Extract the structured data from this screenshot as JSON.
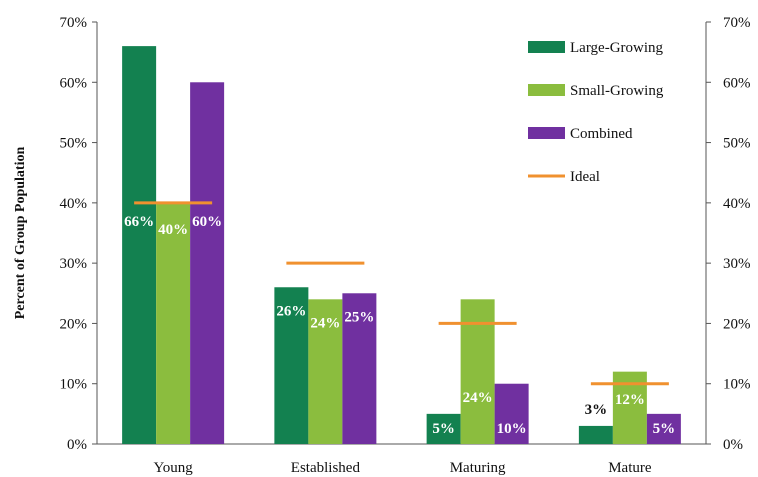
{
  "chart_data": {
    "type": "bar",
    "categories": [
      "Young",
      "Established",
      "Maturing",
      "Mature"
    ],
    "series": [
      {
        "name": "Large-Growing",
        "values": [
          66,
          26,
          5,
          3
        ],
        "labels": [
          "66%",
          "26%",
          "5%",
          "3%"
        ],
        "color": "#138150"
      },
      {
        "name": "Small-Growing",
        "values": [
          40,
          24,
          24,
          12
        ],
        "labels": [
          "40%",
          "24%",
          "24%",
          "12%"
        ],
        "color": "#8BBD3E"
      },
      {
        "name": "Combined",
        "values": [
          60,
          25,
          10,
          5
        ],
        "labels": [
          "60%",
          "25%",
          "10%",
          "5%"
        ],
        "color": "#7030A0"
      }
    ],
    "ideal": {
      "name": "Ideal",
      "values": [
        40,
        30,
        20,
        10
      ],
      "color": "#F0912F"
    },
    "ylabel": "Percent of Group Population",
    "ylim": [
      0,
      70
    ],
    "yticks": [
      "0%",
      "10%",
      "20%",
      "30%",
      "40%",
      "50%",
      "60%",
      "70%"
    ],
    "secondary_axis": true,
    "legend_position": "top-right",
    "grid": false
  }
}
